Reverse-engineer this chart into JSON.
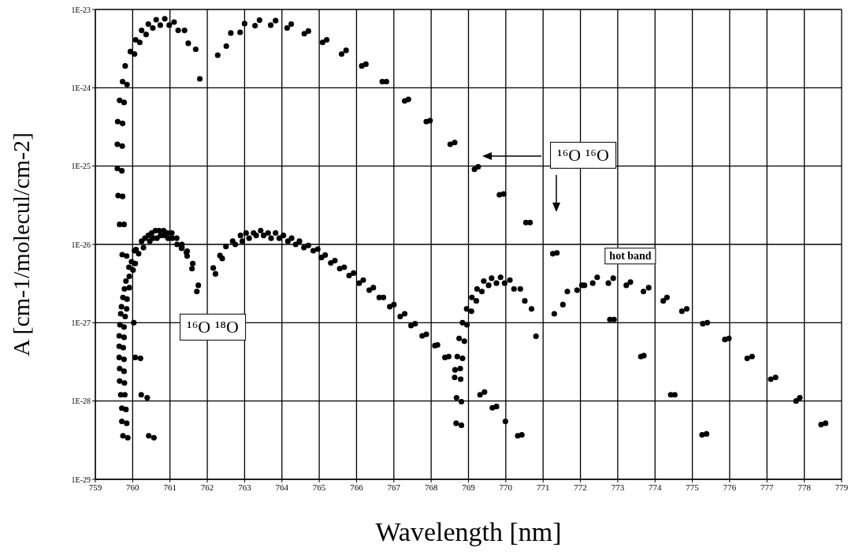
{
  "chart_data": {
    "type": "scatter",
    "xlabel": "Wavelength [nm]",
    "ylabel": "A [cm-1/molecul/cm-2]",
    "x": [
      759.73,
      759.85,
      759.8,
      759.94,
      760.05,
      760.08,
      760.19,
      760.24,
      760.36,
      760.42,
      760.54,
      760.63,
      760.74,
      760.86,
      760.98,
      761.11,
      761.22,
      761.39,
      761.49,
      761.69,
      761.8,
      762.28,
      762.51,
      762.63,
      762.88,
      763.0,
      763.28,
      763.4,
      763.7,
      763.83,
      764.14,
      764.25,
      764.6,
      764.71,
      765.09,
      765.2,
      765.6,
      765.72,
      766.14,
      766.25,
      766.69,
      766.8,
      767.29,
      767.39,
      767.87,
      767.97,
      768.51,
      768.63,
      769.16,
      769.26,
      769.83,
      769.94,
      770.54,
      770.65,
      771.26,
      771.37,
      772.79,
      772.9,
      773.62,
      773.7,
      774.42,
      774.53,
      775.26,
      775.38,
      759.65,
      759.77,
      759.6,
      759.73,
      759.59,
      759.72,
      759.59,
      759.71,
      759.61,
      759.73,
      759.65,
      759.77,
      759.72,
      759.84,
      759.97,
      760.07,
      760.05,
      760.16,
      759.9,
      760.01,
      759.82,
      759.91,
      759.78,
      759.91,
      759.74,
      759.85,
      759.7,
      759.84,
      759.68,
      759.8,
      759.66,
      759.77,
      759.64,
      759.77,
      759.64,
      759.75,
      759.64,
      759.77,
      759.65,
      759.77,
      759.65,
      759.78,
      759.68,
      759.79,
      759.71,
      759.82,
      759.71,
      759.84,
      759.74,
      759.87,
      760.03,
      760.07,
      760.21,
      760.23,
      760.39,
      760.43,
      760.57,
      760.09,
      760.29,
      760.24,
      760.33,
      760.42,
      760.51,
      760.61,
      760.71,
      760.83,
      760.93,
      761.05,
      760.46,
      760.55,
      760.65,
      760.75,
      760.86,
      760.95,
      761.06,
      761.18,
      761.19,
      761.32,
      761.32,
      761.46,
      761.31,
      761.44,
      761.46,
      761.61,
      761.59,
      761.76,
      761.72,
      762.16,
      762.22,
      762.34,
      762.4,
      762.5,
      762.68,
      762.75,
      762.89,
      762.94,
      763.04,
      763.12,
      763.24,
      763.31,
      763.43,
      763.51,
      763.63,
      763.71,
      763.83,
      763.93,
      764.04,
      764.16,
      764.26,
      764.37,
      764.47,
      764.59,
      764.71,
      764.84,
      764.96,
      765.06,
      765.16,
      765.31,
      765.42,
      765.55,
      765.67,
      765.8,
      765.92,
      766.07,
      766.18,
      766.34,
      766.45,
      766.61,
      766.72,
      766.89,
      767.0,
      767.17,
      767.29,
      767.46,
      767.57,
      767.76,
      767.87,
      768.1,
      768.17,
      768.37,
      768.47,
      768.67,
      768.81,
      768.68,
      768.81,
      769.31,
      769.43,
      769.64,
      769.75,
      769.99,
      770.32,
      770.43,
      770.81,
      768.63,
      768.79,
      768.64,
      768.78,
      768.7,
      768.84,
      768.75,
      768.89,
      768.84,
      768.96,
      768.95,
      769.08,
      769.09,
      769.21,
      769.23,
      769.36,
      769.41,
      769.54,
      769.62,
      769.75,
      769.86,
      769.97,
      770.11,
      770.22,
      770.39,
      770.51,
      770.69,
      771.3,
      771.53,
      771.65,
      771.91,
      772.04,
      772.11,
      772.33,
      772.45,
      772.75,
      772.88,
      773.23,
      773.34,
      773.69,
      773.83,
      774.22,
      774.32,
      774.72,
      774.85,
      775.28,
      775.4,
      775.87,
      775.98,
      776.47,
      776.6,
      777.1,
      777.23,
      777.78,
      777.88,
      778.45,
      778.57
    ],
    "values": [
      1.2e-24,
      1.1e-24,
      1.9e-24,
      2.9e-24,
      2.7e-24,
      4.1e-24,
      3.8e-24,
      5.4e-24,
      4.8e-24,
      6.5e-24,
      5.8e-24,
      7.4e-24,
      6.3e-24,
      7.6e-24,
      6.3e-24,
      6.9e-24,
      5.4e-24,
      5.4e-24,
      3.7e-24,
      3.1e-24,
      1.3e-24,
      2.6e-24,
      3.4e-24,
      5e-24,
      5.1e-24,
      6.6e-24,
      6.2e-24,
      7.3e-24,
      6.3e-24,
      7.2e-24,
      5.8e-24,
      6.5e-24,
      4.9e-24,
      5.3e-24,
      3.8e-24,
      4.1e-24,
      2.7e-24,
      3e-24,
      1.9e-24,
      2e-24,
      1.2e-24,
      1.2e-24,
      6.8e-25,
      7.1e-25,
      3.7e-25,
      3.8e-25,
      1.9e-25,
      2e-25,
      9.1e-26,
      9.8e-26,
      4.3e-26,
      4.4e-26,
      1.9e-26,
      1.9e-26,
      7.6e-27,
      7.8e-27,
      1.1e-27,
      1.1e-27,
      3.7e-28,
      3.8e-28,
      1.2e-28,
      1.2e-28,
      3.7e-29,
      3.8e-29,
      6.9e-25,
      6.5e-25,
      3.7e-25,
      3.5e-25,
      1.9e-25,
      1.8e-25,
      9.3e-26,
      8.7e-26,
      4.2e-26,
      4.1e-26,
      1.8e-26,
      1.8e-26,
      7.4e-27,
      7.1e-27,
      6e-27,
      5.7e-27,
      8.3e-27,
      7.6e-27,
      5.1e-27,
      4.7e-27,
      3.4e-27,
      3.9e-27,
      2.7e-27,
      2.8e-27,
      2.1e-27,
      2e-27,
      1.6e-27,
      1.5e-27,
      1.3e-27,
      1.2e-27,
      9.4e-28,
      8.8e-28,
      6.8e-28,
      6.5e-28,
      5e-28,
      4.8e-28,
      3.6e-28,
      3.4e-28,
      2.6e-28,
      2.4e-28,
      1.8e-28,
      1.7e-28,
      1.2e-28,
      1.2e-28,
      8.1e-29,
      7.8e-29,
      5.5e-29,
      5.2e-29,
      3.6e-29,
      3.4e-29,
      1e-27,
      3.6e-28,
      3.5e-28,
      1.2e-28,
      1.1e-28,
      3.6e-29,
      3.4e-29,
      8.6e-27,
      9.1e-27,
      1.1e-26,
      1.2e-26,
      1.3e-26,
      1.4e-26,
      1.5e-26,
      1.5e-26,
      1.5e-26,
      1.4e-26,
      1.4e-26,
      1.1e-26,
      1.2e-26,
      1.2e-26,
      1.3e-26,
      1.3e-26,
      1.2e-26,
      1.2e-26,
      1.2e-26,
      1e-26,
      1e-26,
      9.1e-27,
      8.2e-27,
      8.9e-27,
      7.9e-27,
      7.1e-27,
      5.7e-27,
      4.9e-27,
      3e-27,
      2.5e-27,
      5e-27,
      4.2e-27,
      7.2e-27,
      6.6e-27,
      9.4e-27,
      1.1e-26,
      1e-26,
      1.3e-26,
      1.1e-26,
      1.4e-26,
      1.2e-26,
      1.4e-26,
      1.3e-26,
      1.5e-26,
      1.3e-26,
      1.4e-26,
      1.2e-26,
      1.4e-26,
      1.2e-26,
      1.3e-26,
      1.1e-26,
      1.2e-26,
      1e-26,
      1.1e-26,
      9.1e-27,
      9.7e-27,
      8.3e-27,
      8.7e-27,
      6.8e-27,
      7.3e-27,
      5.8e-27,
      6.2e-27,
      4.9e-27,
      5.1e-27,
      4e-27,
      4.3e-27,
      3.2e-27,
      3.5e-27,
      2.6e-27,
      2.8e-27,
      2.1e-27,
      2.1e-27,
      1.6e-27,
      1.7e-27,
      1.2e-27,
      1.3e-27,
      9.2e-28,
      9.7e-28,
      6.8e-28,
      7.1e-28,
      5.1e-28,
      5.2e-28,
      3.6e-28,
      3.7e-28,
      5.2e-29,
      4.9e-29,
      1.1e-28,
      9.8e-29,
      1.2e-28,
      1.3e-28,
      8.2e-29,
      8.5e-29,
      5.5e-29,
      3.6e-29,
      3.7e-29,
      6.7e-28,
      2e-28,
      1.9e-28,
      2.5e-28,
      2.6e-28,
      3.7e-28,
      3.5e-28,
      6.3e-28,
      5.8e-28,
      1e-27,
      9.4e-28,
      1.5e-27,
      1.4e-27,
      2.1e-27,
      1.9e-27,
      2.7e-27,
      2.5e-27,
      3.4e-27,
      3e-27,
      3.7e-27,
      3.2e-27,
      3.8e-27,
      3.2e-27,
      3.5e-27,
      2.7e-27,
      2.7e-27,
      1.9e-27,
      1.5e-27,
      1.3e-27,
      1.7e-27,
      2.5e-27,
      2.6e-27,
      3e-27,
      3e-27,
      3.2e-27,
      3.8e-27,
      3.2e-27,
      3.7e-27,
      3e-27,
      3.3e-27,
      2.5e-27,
      2.8e-27,
      1.9e-27,
      2.1e-27,
      1.4e-27,
      1.5e-27,
      9.7e-28,
      1e-27,
      6.1e-28,
      6.3e-28,
      3.5e-28,
      3.7e-28,
      1.9e-28,
      2e-28,
      1e-28,
      1.1e-28,
      5e-29,
      5.2e-29
    ],
    "color": "#000000",
    "marker": "circle",
    "log": "y",
    "grid": true,
    "xlim": [
      759,
      779
    ],
    "xticks": [
      759,
      760,
      761,
      762,
      763,
      764,
      765,
      766,
      767,
      768,
      769,
      770,
      771,
      772,
      773,
      774,
      775,
      776,
      777,
      778,
      779
    ],
    "ylim": [
      1e-29,
      1e-23
    ],
    "yticks": [
      {
        "value": 1e-29,
        "label": "1E-29"
      },
      {
        "value": 1e-28,
        "label": "1E-28"
      },
      {
        "value": 1e-27,
        "label": "1E-27"
      },
      {
        "value": 1e-26,
        "label": "1E-26"
      },
      {
        "value": 1e-25,
        "label": "1E-25"
      },
      {
        "value": 1e-24,
        "label": "1E-24"
      },
      {
        "value": 1e-23,
        "label": "1E-23"
      }
    ],
    "annotations": [
      "¹⁶O ¹⁶O",
      "¹⁶O ¹⁸O",
      "hot band"
    ]
  }
}
